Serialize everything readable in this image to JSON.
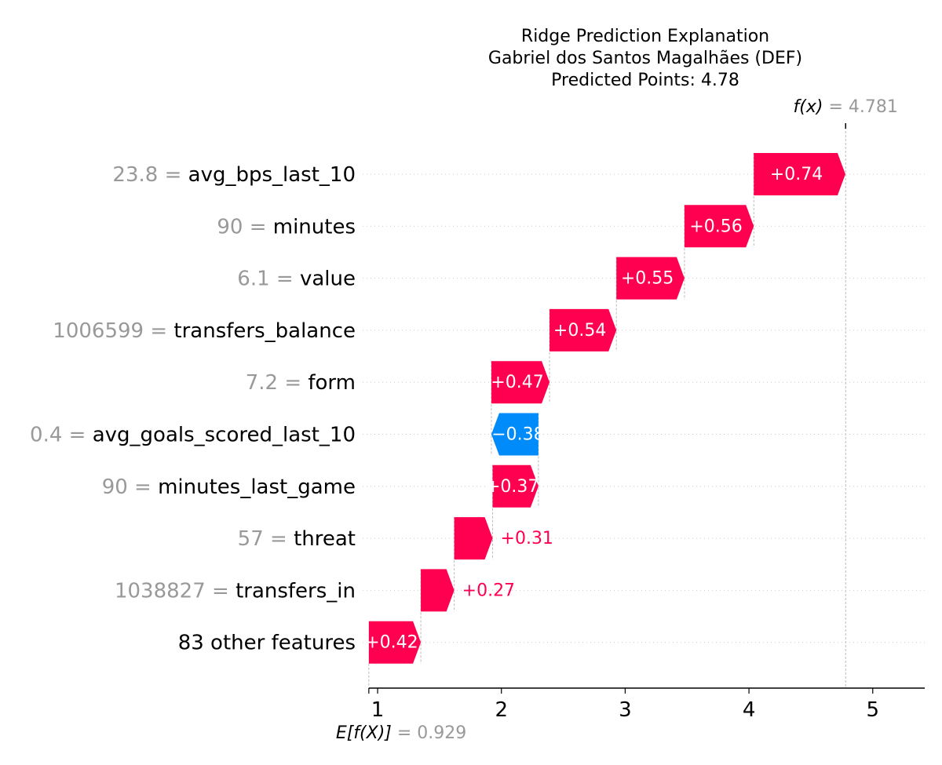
{
  "chart_data": {
    "type": "waterfall",
    "title_lines": [
      "Ridge Prediction Explanation",
      "Gabriel dos Santos Magalhães (DEF)",
      "Predicted Points: 4.78"
    ],
    "base_value": 0.929,
    "base_label_value": "0.929",
    "final_value": 4.781,
    "final_label_value": "4.781",
    "fx_label": "f(x)",
    "ef_label": "E[f(X)]",
    "x_ticks": [
      1,
      2,
      3,
      4,
      5
    ],
    "x_tick_labels": [
      "1",
      "2",
      "3",
      "4",
      "5"
    ],
    "xlim": [
      0.93,
      5.42
    ],
    "colors": {
      "positive": "#ff0051",
      "negative": "#008bfb",
      "value_gray": "#999999",
      "axis": "#000000",
      "grid": "#cccccc"
    },
    "features": [
      {
        "value_text": "23.8 =",
        "name": "avg_bps_last_10",
        "contribution": 0.74,
        "label": "+0.74"
      },
      {
        "value_text": "90 =",
        "name": "minutes",
        "contribution": 0.56,
        "label": "+0.56"
      },
      {
        "value_text": "6.1 =",
        "name": "value",
        "contribution": 0.55,
        "label": "+0.55"
      },
      {
        "value_text": "1006599 =",
        "name": "transfers_balance",
        "contribution": 0.54,
        "label": "+0.54"
      },
      {
        "value_text": "7.2 =",
        "name": "form",
        "contribution": 0.47,
        "label": "+0.47"
      },
      {
        "value_text": "0.4 =",
        "name": "avg_goals_scored_last_10",
        "contribution": -0.38,
        "label": "−0.38"
      },
      {
        "value_text": "90 =",
        "name": "minutes_last_game",
        "contribution": 0.37,
        "label": "+0.37"
      },
      {
        "value_text": "57 =",
        "name": "threat",
        "contribution": 0.31,
        "label": "+0.31"
      },
      {
        "value_text": "1038827 =",
        "name": "transfers_in",
        "contribution": 0.27,
        "label": "+0.27"
      },
      {
        "value_text": "",
        "name": "83 other features",
        "contribution": 0.42,
        "label": "+0.42"
      }
    ]
  }
}
